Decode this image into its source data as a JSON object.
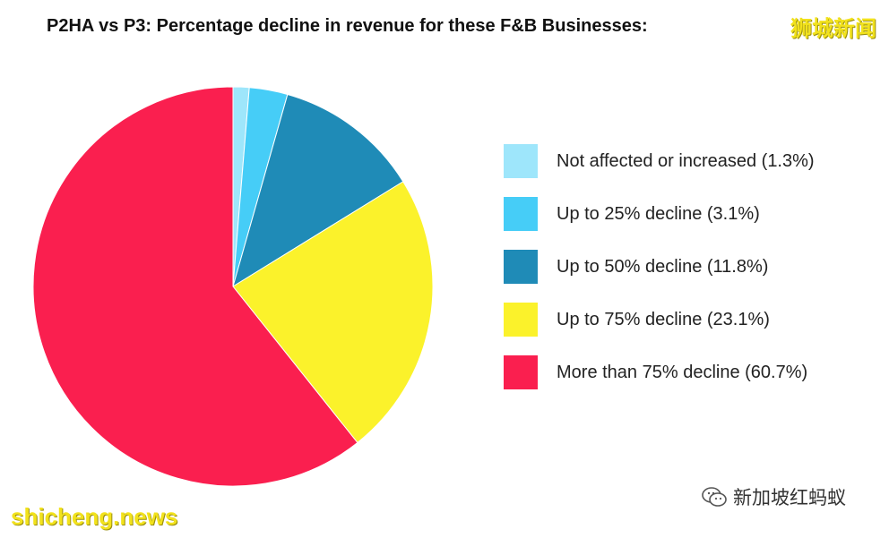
{
  "chart_data": {
    "type": "pie",
    "title": "P2HA vs P3: Percentage decline in revenue for these F&B Businesses:",
    "slices": [
      {
        "label": "Not affected or increased (1.3%)",
        "value": 1.3,
        "color": "#9ee6fb"
      },
      {
        "label": "Up to 25% decline (3.1%)",
        "value": 3.1,
        "color": "#46cdf7"
      },
      {
        "label": "Up to 50% decline (11.8%)",
        "value": 11.8,
        "color": "#1f8bb7"
      },
      {
        "label": "Up to 75% decline (23.1%)",
        "value": 23.1,
        "color": "#fbf22b"
      },
      {
        "label": "More than 75% decline (60.7%)",
        "value": 60.7,
        "color": "#fa1f4f"
      }
    ],
    "start_angle_deg": 0,
    "direction": "clockwise",
    "legend_position": "right"
  },
  "watermarks": {
    "top_right": "狮城新闻",
    "bottom_left": "shicheng.news",
    "bottom_right": "新加坡红蚂蚁"
  },
  "icons": {
    "wechat": "wechat-icon"
  }
}
